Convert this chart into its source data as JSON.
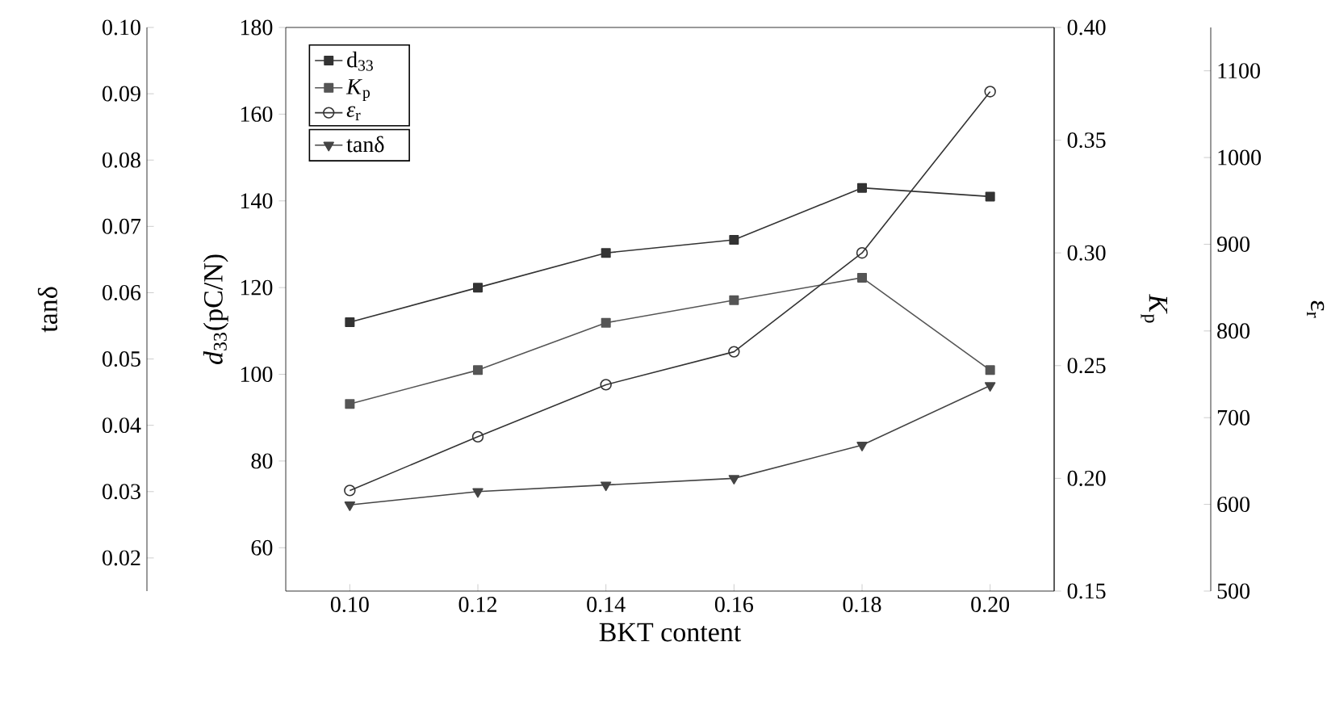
{
  "chart_data": [
    {
      "type": "line",
      "xlabel": "BKT content",
      "ylabel": "*d*$_{33}$(pC/N)",
      "y2label": "*K*$_{p}$",
      "y3label": "ε$_{r}$",
      "x": [
        0.1,
        0.12,
        0.14,
        0.16,
        0.18,
        0.2
      ],
      "xlim": [
        0.09,
        0.21
      ],
      "xticks": [
        {
          "value": 0.1,
          "label": "0.10"
        },
        0.12,
        0.14,
        0.16,
        0.18,
        {
          "value": 0.2,
          "label": "0.20"
        }
      ],
      "ylim": [
        50,
        180
      ],
      "yticks": [
        60,
        80,
        100,
        120,
        140,
        160,
        180
      ],
      "y2lim": [
        0.15,
        0.4
      ],
      "y2ticks": [
        0.15,
        {
          "value": 0.2,
          "label": "0.20"
        },
        0.25,
        {
          "value": 0.3,
          "label": "0.30"
        },
        0.35,
        {
          "value": 0.4,
          "label": "0.40"
        }
      ],
      "y3lim": [
        500,
        1150
      ],
      "y3ticks": [
        500,
        600,
        700,
        800,
        900,
        1000,
        1100
      ],
      "legend": "top left",
      "grid": false,
      "series": [
        {
          "name": "d$_{33}$",
          "axis": "y",
          "color": "#333333",
          "marker": "square",
          "values": [
            112,
            120,
            128,
            131,
            143,
            141
          ]
        },
        {
          "name": "*K*$_{p}$",
          "axis": "y2",
          "color": "#555555",
          "marker": "square",
          "values": [
            0.233,
            0.248,
            0.269,
            0.279,
            0.289,
            0.248
          ]
        },
        {
          "name": "*ε*$_{r}$",
          "axis": "y3",
          "color": "#333333",
          "marker": "circle",
          "values": [
            616,
            678,
            738,
            776,
            890,
            1076
          ]
        }
      ]
    },
    {
      "type": "line",
      "ylabel": "tanδ",
      "tick_labels": "y",
      "legend": "top left",
      "grid": false,
      "x": [
        0.1,
        0.12,
        0.14,
        0.16,
        0.18,
        0.2
      ],
      "xlim": [
        0.09,
        0.21
      ],
      "ylim": [
        0.015,
        0.1
      ],
      "yticks": [
        0.02,
        0.03,
        0.04,
        0.05,
        0.06,
        0.07,
        0.08,
        0.09,
        {
          "value": 0.1,
          "label": "0.10"
        }
      ],
      "series": [
        {
          "name": "tanδ",
          "color": "#444444",
          "marker": "triangle",
          "values": [
            0.028,
            0.03,
            0.031,
            0.032,
            0.037,
            0.046
          ]
        }
      ]
    }
  ]
}
